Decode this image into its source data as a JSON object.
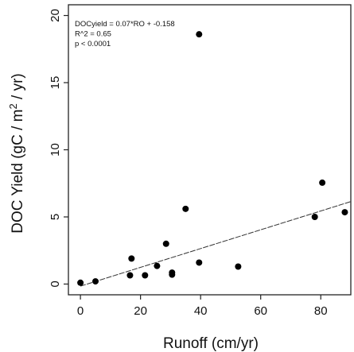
{
  "chart_data": {
    "type": "scatter",
    "title": "",
    "xlabel": "Runoff (cm/yr)",
    "ylabel_parts": [
      "DOC Yield (gC / m",
      "2",
      " / yr)"
    ],
    "xlim": [
      -4,
      90
    ],
    "ylim": [
      -0.8,
      20.8
    ],
    "x_ticks": [
      0,
      20,
      40,
      60,
      80
    ],
    "y_ticks": [
      0,
      5,
      10,
      15,
      20
    ],
    "x_tick_labels": [
      "0",
      "20",
      "40",
      "60",
      "80"
    ],
    "y_tick_labels": [
      "0",
      "5",
      "10",
      "15",
      "20"
    ],
    "grid": false,
    "points": [
      {
        "x": 0,
        "y": 0.1
      },
      {
        "x": 5,
        "y": 0.2
      },
      {
        "x": 16.5,
        "y": 0.65
      },
      {
        "x": 17,
        "y": 1.9
      },
      {
        "x": 21.5,
        "y": 0.65
      },
      {
        "x": 25.5,
        "y": 1.35
      },
      {
        "x": 28.5,
        "y": 3.0
      },
      {
        "x": 30.5,
        "y": 0.7
      },
      {
        "x": 30.5,
        "y": 0.85
      },
      {
        "x": 35,
        "y": 5.6
      },
      {
        "x": 39.5,
        "y": 18.6
      },
      {
        "x": 39.5,
        "y": 1.6
      },
      {
        "x": 52.5,
        "y": 1.3
      },
      {
        "x": 78,
        "y": 5.0
      },
      {
        "x": 80.5,
        "y": 7.55
      },
      {
        "x": 88,
        "y": 5.35
      }
    ],
    "fit_line": {
      "slope": 0.07,
      "intercept": -0.158,
      "x_range": [
        0,
        90
      ]
    },
    "annotations": [
      "DOCyield = 0.07*RO + -0.158",
      "R^2 = 0.65",
      "p < 0.0001"
    ]
  }
}
